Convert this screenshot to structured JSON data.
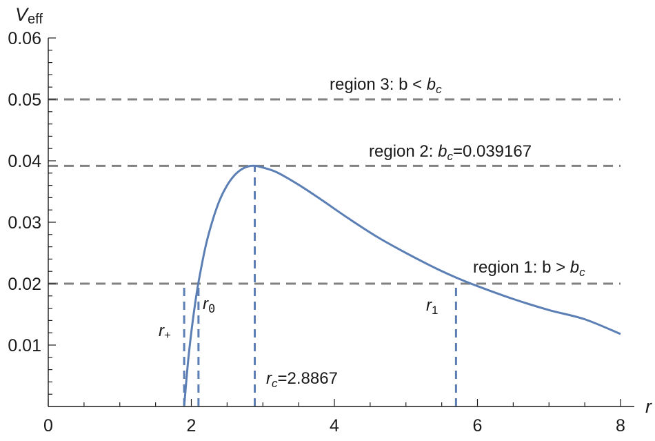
{
  "chart_data": {
    "type": "line",
    "title": "",
    "xlabel": "r",
    "ylabel": "V",
    "ylabel_sub": "eff",
    "xlim": [
      0,
      8
    ],
    "ylim": [
      0,
      0.06
    ],
    "x_ticks": [
      0,
      2,
      4,
      6,
      8
    ],
    "y_ticks": [
      0.01,
      0.02,
      0.03,
      0.04,
      0.05,
      0.06
    ],
    "x_ticks_text": [
      "0",
      "2",
      "4",
      "6",
      "8"
    ],
    "y_ticks_text": [
      "0.01",
      "0.02",
      "0.03",
      "0.04",
      "0.05",
      "0.06"
    ],
    "grid": false,
    "series": [
      {
        "color": "#5b7fb5",
        "x": [
          1.9,
          1.95,
          2.0,
          2.05,
          2.1,
          2.2,
          2.3,
          2.4,
          2.5,
          2.6,
          2.7,
          2.8,
          2.8867,
          3.0,
          3.2,
          3.5,
          3.8,
          4.2,
          4.6,
          5.0,
          5.4,
          5.7,
          6.0,
          6.5,
          7.0,
          7.5,
          8.0
        ],
        "y": [
          0.0,
          0.0068,
          0.0121,
          0.0165,
          0.0202,
          0.0261,
          0.0304,
          0.0337,
          0.036,
          0.0376,
          0.0386,
          0.0391,
          0.039167,
          0.0389,
          0.0381,
          0.0361,
          0.0338,
          0.0306,
          0.0276,
          0.025,
          0.0226,
          0.021,
          0.0196,
          0.0175,
          0.0157,
          0.0142,
          0.0118
        ]
      }
    ],
    "reference_lines": [
      {
        "y": 0.05,
        "color": "#808080"
      },
      {
        "y": 0.039167,
        "color": "#808080"
      },
      {
        "y": 0.02,
        "color": "#808080"
      }
    ],
    "drop_lines": [
      {
        "x": 1.9,
        "y_top": 0.02
      },
      {
        "x": 2.1,
        "y_top": 0.02
      },
      {
        "x": 2.8867,
        "y_top": 0.039167
      },
      {
        "x": 5.7,
        "y_top": 0.02
      }
    ],
    "annotations": {
      "region3": {
        "prefix": "region 3: b < ",
        "var": "b",
        "sub": "c",
        "suffix": ""
      },
      "region2": {
        "prefix": "region 2: ",
        "var": "b",
        "sub": "c",
        "suffix": "=0.039167"
      },
      "region1": {
        "prefix": "region 1: b > ",
        "var": "b",
        "sub": "c",
        "suffix": ""
      },
      "r_plus": {
        "var": "r",
        "sub": "+"
      },
      "r_zero": {
        "var": "r",
        "sub": "0"
      },
      "r_one": {
        "var": "r",
        "sub": "1"
      },
      "r_c": {
        "var": "r",
        "sub": "c",
        "suffix": "=2.8867"
      }
    }
  }
}
